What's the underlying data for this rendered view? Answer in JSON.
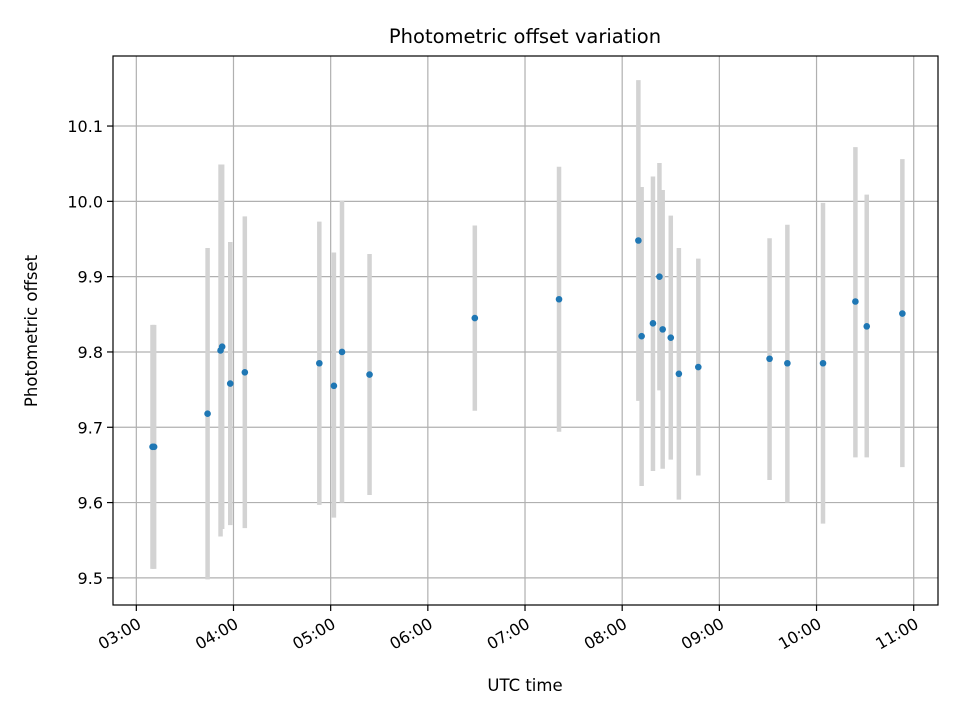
{
  "chart_data": {
    "type": "scatter",
    "title": "Photometric offset variation",
    "xlabel": "UTC time",
    "ylabel": "Photometric offset",
    "x_unit": "hours UTC",
    "xlim": [
      2.76,
      11.25
    ],
    "ylim": [
      9.464,
      10.193
    ],
    "grid": true,
    "x_tick_values": [
      3,
      4,
      5,
      6,
      7,
      8,
      9,
      10,
      11
    ],
    "x_tick_labels": [
      "03:00",
      "04:00",
      "05:00",
      "06:00",
      "07:00",
      "08:00",
      "09:00",
      "10:00",
      "11:00"
    ],
    "y_tick_values": [
      9.5,
      9.6,
      9.7,
      9.8,
      9.9,
      10.0,
      10.1
    ],
    "y_tick_labels": [
      "9.5",
      "9.6",
      "9.7",
      "9.8",
      "9.9",
      "10.0",
      "10.1"
    ],
    "point_color": "#1f77b4",
    "errorbar_color": "#d3d3d3",
    "points": [
      {
        "time": "03:10",
        "y": 9.674,
        "ylow": 9.512,
        "yhigh": 9.836
      },
      {
        "time": "03:11",
        "y": 9.674,
        "ylow": 9.512,
        "yhigh": 9.836
      },
      {
        "time": "03:44",
        "y": 9.718,
        "ylow": 9.498,
        "yhigh": 9.938
      },
      {
        "time": "03:52",
        "y": 9.802,
        "ylow": 9.555,
        "yhigh": 10.049
      },
      {
        "time": "03:53",
        "y": 9.807,
        "ylow": 9.565,
        "yhigh": 10.049
      },
      {
        "time": "03:58",
        "y": 9.758,
        "ylow": 9.57,
        "yhigh": 9.946
      },
      {
        "time": "04:07",
        "y": 9.773,
        "ylow": 9.566,
        "yhigh": 9.98
      },
      {
        "time": "04:53",
        "y": 9.785,
        "ylow": 9.597,
        "yhigh": 9.973
      },
      {
        "time": "05:02",
        "y": 9.755,
        "ylow": 9.58,
        "yhigh": 9.932
      },
      {
        "time": "05:07",
        "y": 9.8,
        "ylow": 9.6,
        "yhigh": 10.001
      },
      {
        "time": "05:24",
        "y": 9.77,
        "ylow": 9.61,
        "yhigh": 9.93
      },
      {
        "time": "06:29",
        "y": 9.845,
        "ylow": 9.722,
        "yhigh": 9.968
      },
      {
        "time": "07:21",
        "y": 9.87,
        "ylow": 9.694,
        "yhigh": 10.046
      },
      {
        "time": "08:10",
        "y": 9.948,
        "ylow": 9.735,
        "yhigh": 10.161
      },
      {
        "time": "08:12",
        "y": 9.821,
        "ylow": 9.622,
        "yhigh": 10.019
      },
      {
        "time": "08:19",
        "y": 9.838,
        "ylow": 9.642,
        "yhigh": 10.033
      },
      {
        "time": "08:23",
        "y": 9.9,
        "ylow": 9.749,
        "yhigh": 10.051
      },
      {
        "time": "08:25",
        "y": 9.83,
        "ylow": 9.645,
        "yhigh": 10.015
      },
      {
        "time": "08:30",
        "y": 9.819,
        "ylow": 9.657,
        "yhigh": 9.981
      },
      {
        "time": "08:35",
        "y": 9.771,
        "ylow": 9.604,
        "yhigh": 9.938
      },
      {
        "time": "08:47",
        "y": 9.78,
        "ylow": 9.636,
        "yhigh": 9.924
      },
      {
        "time": "09:31",
        "y": 9.791,
        "ylow": 9.63,
        "yhigh": 9.951
      },
      {
        "time": "09:42",
        "y": 9.785,
        "ylow": 9.6,
        "yhigh": 9.969
      },
      {
        "time": "10:04",
        "y": 9.785,
        "ylow": 9.572,
        "yhigh": 9.998
      },
      {
        "time": "10:24",
        "y": 9.867,
        "ylow": 9.66,
        "yhigh": 10.072
      },
      {
        "time": "10:31",
        "y": 9.834,
        "ylow": 9.66,
        "yhigh": 10.009
      },
      {
        "time": "10:53",
        "y": 9.851,
        "ylow": 9.647,
        "yhigh": 10.056
      }
    ]
  }
}
